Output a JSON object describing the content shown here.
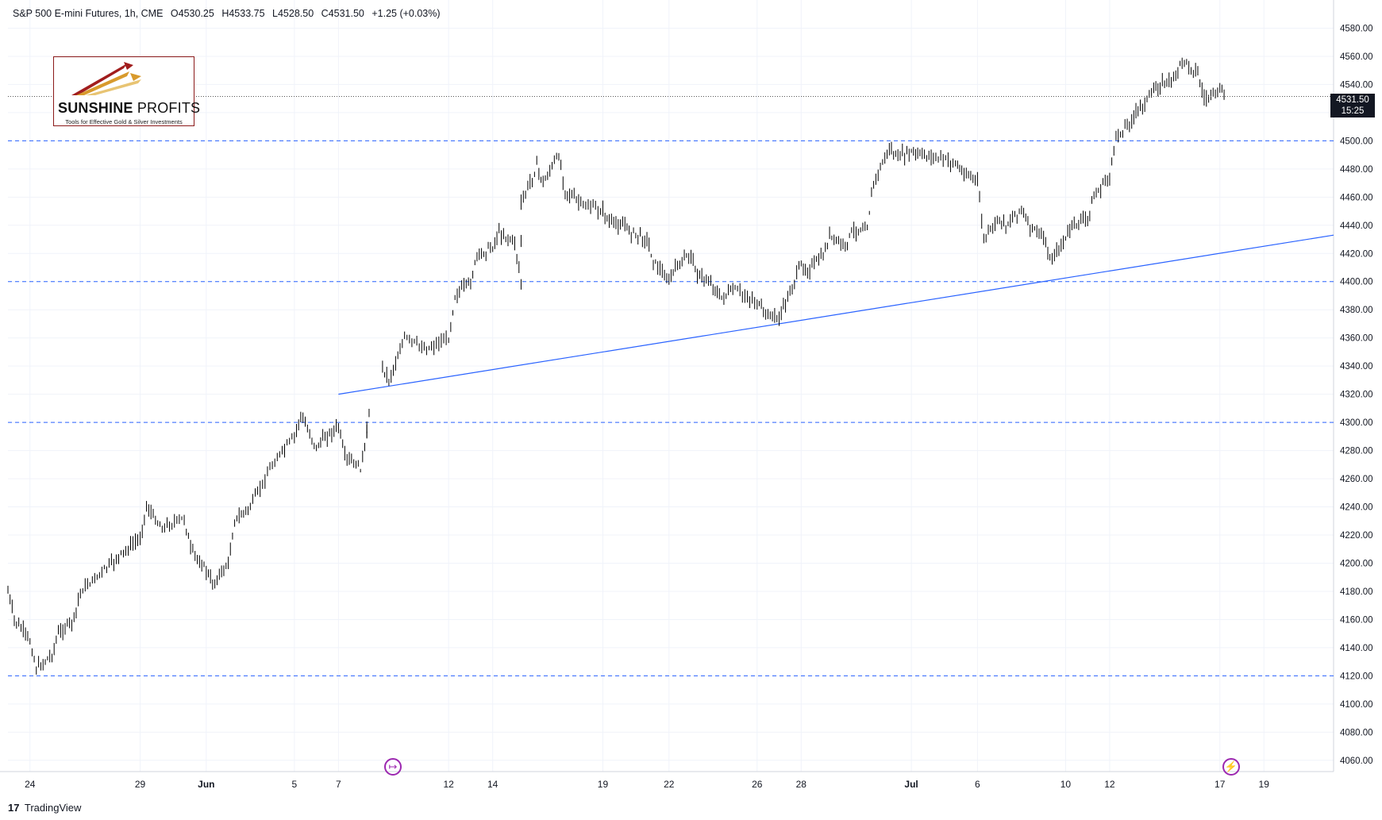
{
  "header": {
    "symbol": "S&P 500 E-mini Futures, 1h, CME",
    "open": "O4530.25",
    "high": "H4533.75",
    "low": "L4528.50",
    "close": "C4531.50",
    "change": "+1.25 (+0.03%)"
  },
  "logo": {
    "name_bold": "SUNSHINE",
    "name_thin": "PROFITS",
    "tagline": "Tools for Effective Gold & Silver Investments"
  },
  "price_badge": {
    "price": "4531.50",
    "timer": "15:25"
  },
  "footer": {
    "brand": "TradingView",
    "brand_icon": "tradingview-logo-icon"
  },
  "icons": {
    "left_marker": "goto-realtime-icon",
    "right_marker": "lightning-alert-icon"
  },
  "colors": {
    "guide_line": "#2962ff",
    "trend_line": "#2962ff",
    "candles": "#000000",
    "price_badge": "#131722"
  },
  "chart_data": {
    "type": "line",
    "instrument": "S&P 500 E-mini Futures",
    "timeframe": "1h",
    "y_ticks": [
      4060,
      4080,
      4100,
      4120,
      4140,
      4160,
      4180,
      4200,
      4220,
      4240,
      4260,
      4280,
      4300,
      4320,
      4340,
      4360,
      4380,
      4400,
      4420,
      4440,
      4460,
      4480,
      4500,
      4520,
      4540,
      4560,
      4580
    ],
    "y_tick_labels": [
      "4060.00",
      "4080.00",
      "4100.00",
      "4120.00",
      "4140.00",
      "4160.00",
      "4180.00",
      "4200.00",
      "4220.00",
      "4240.00",
      "4260.00",
      "4280.00",
      "4300.00",
      "4320.00",
      "4340.00",
      "4360.00",
      "4380.00",
      "4400.00",
      "4420.00",
      "4440.00",
      "4460.00",
      "4480.00",
      "4500.00",
      "4520.00",
      "4540.00",
      "4560.00",
      "4580.00"
    ],
    "ylim": [
      4052,
      4600
    ],
    "x_tick_labels": [
      "24",
      "29",
      "Jun",
      "5",
      "7",
      "12",
      "14",
      "19",
      "22",
      "26",
      "28",
      "Jul",
      "6",
      "10",
      "12",
      "17",
      "19"
    ],
    "x_tick_dates": [
      "2023-05-24",
      "2023-05-29",
      "2023-06-01",
      "2023-06-05",
      "2023-06-07",
      "2023-06-12",
      "2023-06-14",
      "2023-06-19",
      "2023-06-22",
      "2023-06-26",
      "2023-06-28",
      "2023-07-03",
      "2023-07-06",
      "2023-07-10",
      "2023-07-12",
      "2023-07-17",
      "2023-07-19"
    ],
    "x_range_dates": [
      "2023-05-23",
      "2023-07-20"
    ],
    "horizontal_lines": [
      4500,
      4400,
      4300,
      4120
    ],
    "current_price": 4531.5,
    "trend_line": {
      "start": [
        "2023-06-07",
        4320
      ],
      "end": [
        "2023-07-20",
        4433
      ]
    },
    "price_path": [
      [
        "2023-05-23",
        4180
      ],
      [
        "2023-05-23",
        4160
      ],
      [
        "2023-05-24",
        4145
      ],
      [
        "2023-05-24",
        4125
      ],
      [
        "2023-05-25",
        4135
      ],
      [
        "2023-05-25",
        4150
      ],
      [
        "2023-05-26",
        4160
      ],
      [
        "2023-05-26",
        4180
      ],
      [
        "2023-05-29",
        4218
      ],
      [
        "2023-05-29",
        4240
      ],
      [
        "2023-05-30",
        4225
      ],
      [
        "2023-05-31",
        4232
      ],
      [
        "2023-05-31",
        4210
      ],
      [
        "2023-06-01",
        4195
      ],
      [
        "2023-06-01",
        4185
      ],
      [
        "2023-06-02",
        4200
      ],
      [
        "2023-06-02",
        4230
      ],
      [
        "2023-06-03",
        4240
      ],
      [
        "2023-06-04",
        4270
      ],
      [
        "2023-06-05",
        4290
      ],
      [
        "2023-06-05",
        4305
      ],
      [
        "2023-06-06",
        4282
      ],
      [
        "2023-06-06",
        4288
      ],
      [
        "2023-06-07",
        4297
      ],
      [
        "2023-06-07",
        4275
      ],
      [
        "2023-06-08",
        4268
      ],
      [
        "2023-06-08",
        4288
      ],
      [
        "2023-06-08",
        4300
      ],
      [
        "2023-06-09",
        4340
      ],
      [
        "2023-06-09",
        4330
      ],
      [
        "2023-06-10",
        4360
      ],
      [
        "2023-06-11",
        4352
      ],
      [
        "2023-06-12",
        4360
      ],
      [
        "2023-06-12",
        4390
      ],
      [
        "2023-06-13",
        4400
      ],
      [
        "2023-06-13",
        4418
      ],
      [
        "2023-06-14",
        4425
      ],
      [
        "2023-06-14",
        4435
      ],
      [
        "2023-06-15",
        4428
      ],
      [
        "2023-06-15",
        4400
      ],
      [
        "2023-06-15",
        4455
      ],
      [
        "2023-06-16",
        4482
      ],
      [
        "2023-06-16",
        4470
      ],
      [
        "2023-06-17",
        4490
      ],
      [
        "2023-06-17",
        4465
      ],
      [
        "2023-06-18",
        4455
      ],
      [
        "2023-06-19",
        4450
      ],
      [
        "2023-06-19",
        4442
      ],
      [
        "2023-06-20",
        4440
      ],
      [
        "2023-06-20",
        4435
      ],
      [
        "2023-06-21",
        4430
      ],
      [
        "2023-06-21",
        4415
      ],
      [
        "2023-06-22",
        4400
      ],
      [
        "2023-06-22",
        4410
      ],
      [
        "2023-06-23",
        4420
      ],
      [
        "2023-06-23",
        4405
      ],
      [
        "2023-06-24",
        4398
      ],
      [
        "2023-06-24",
        4388
      ],
      [
        "2023-06-25",
        4394
      ],
      [
        "2023-06-26",
        4385
      ],
      [
        "2023-06-26",
        4378
      ],
      [
        "2023-06-27",
        4374
      ],
      [
        "2023-06-27",
        4385
      ],
      [
        "2023-06-28",
        4412
      ],
      [
        "2023-06-28",
        4408
      ],
      [
        "2023-06-29",
        4418
      ],
      [
        "2023-06-29",
        4432
      ],
      [
        "2023-06-30",
        4425
      ],
      [
        "2023-06-30",
        4435
      ],
      [
        "2023-07-01",
        4440
      ],
      [
        "2023-07-01",
        4470
      ],
      [
        "2023-07-02",
        4495
      ],
      [
        "2023-07-02",
        4488
      ],
      [
        "2023-07-03",
        4492
      ],
      [
        "2023-07-03",
        4490
      ],
      [
        "2023-07-04",
        4489
      ],
      [
        "2023-07-05",
        4484
      ],
      [
        "2023-07-05",
        4478
      ],
      [
        "2023-07-06",
        4472
      ],
      [
        "2023-07-06",
        4430
      ],
      [
        "2023-07-07",
        4445
      ],
      [
        "2023-07-07",
        4440
      ],
      [
        "2023-07-08",
        4452
      ],
      [
        "2023-07-08",
        4440
      ],
      [
        "2023-07-09",
        4432
      ],
      [
        "2023-07-09",
        4415
      ],
      [
        "2023-07-10",
        4430
      ],
      [
        "2023-07-10",
        4440
      ],
      [
        "2023-07-11",
        4445
      ],
      [
        "2023-07-11",
        4460
      ],
      [
        "2023-07-12",
        4475
      ],
      [
        "2023-07-12",
        4502
      ],
      [
        "2023-07-13",
        4515
      ],
      [
        "2023-07-13",
        4522
      ],
      [
        "2023-07-14",
        4535
      ],
      [
        "2023-07-14",
        4540
      ],
      [
        "2023-07-15",
        4545
      ],
      [
        "2023-07-15",
        4558
      ],
      [
        "2023-07-16",
        4548
      ],
      [
        "2023-07-16",
        4530
      ],
      [
        "2023-07-17",
        4535
      ],
      [
        "2023-07-17",
        4531.5
      ]
    ],
    "gaps": [
      [
        "2023-06-08",
        "2023-06-09"
      ]
    ],
    "grid": true,
    "price_axis": "right",
    "time_axis": "bottom"
  }
}
